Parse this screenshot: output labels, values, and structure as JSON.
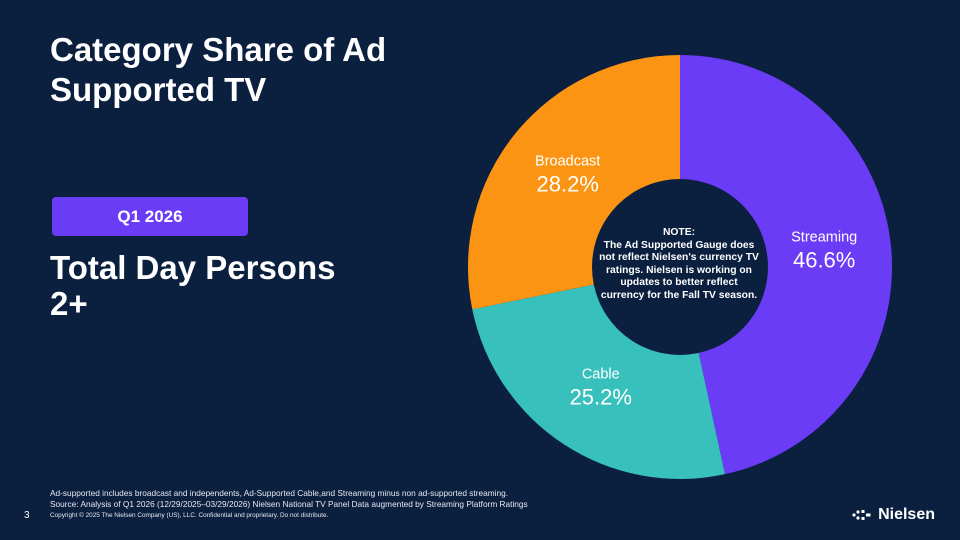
{
  "slide": {
    "title": "Category Share of Ad Supported TV",
    "badge": "Q1 2026",
    "subtitle": "Total Day Persons 2+",
    "footnote_1": "Ad-supported includes broadcast and independents, Ad-Supported Cable,and Streaming minus non ad-supported streaming.",
    "footnote_2": "Source: Analysis of Q1 2026 (12/29/2025–03/29/2026) Nielsen National TV Panel Data augmented by Streaming Platform Ratings",
    "page_number": "3",
    "copyright": "Copyright © 2025 The Nielsen Company (US), LLC. Confidential and proprietary. Do not distribute.",
    "logo_text": "Nielsen",
    "logo_icon": "nielsen-logo-mark-icon"
  },
  "note": {
    "heading": "NOTE:",
    "text": "The Ad Supported Gauge does not reflect Nielsen's currency TV ratings. Nielsen is working on updates to better reflect currency for the Fall TV season."
  },
  "colors": {
    "background": "#0b1f3f",
    "badge": "#6b3cf5",
    "streaming": "#6b3cf5",
    "cable": "#38c0bd",
    "broadcast": "#fb9413"
  },
  "chart_data": {
    "type": "pie",
    "variant": "donut",
    "categories": [
      "Streaming",
      "Cable",
      "Broadcast"
    ],
    "values": [
      46.6,
      25.2,
      28.2
    ],
    "labels": [
      "46.6%",
      "25.2%",
      "28.2%"
    ],
    "colors": [
      "#6b3cf5",
      "#38c0bd",
      "#fb9413"
    ],
    "start_angle": "12 o'clock",
    "direction": "clockwise"
  }
}
